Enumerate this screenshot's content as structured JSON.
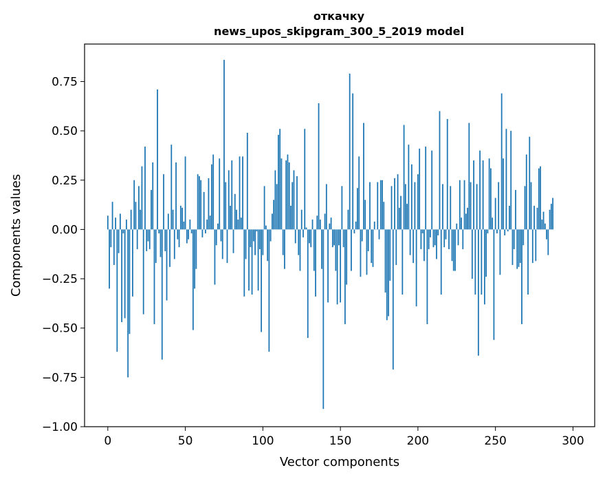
{
  "chart_data": {
    "type": "bar",
    "title": "откачку",
    "subtitle": "news_upos_skipgram_300_5_2019 model",
    "xlabel": "Vector components",
    "ylabel": "Components values",
    "xlim": [
      -15,
      314
    ],
    "ylim": [
      -1.0,
      0.94
    ],
    "xticks": [
      0,
      50,
      100,
      150,
      200,
      250,
      300
    ],
    "xtick_labels": [
      "0",
      "50",
      "100",
      "150",
      "200",
      "250",
      "300"
    ],
    "yticks": [
      -1.0,
      -0.75,
      -0.5,
      -0.25,
      0.0,
      0.25,
      0.5,
      0.75
    ],
    "ytick_labels": [
      "−1.00",
      "−0.75",
      "−0.50",
      "−0.25",
      "0.00",
      "0.25",
      "0.50",
      "0.75"
    ],
    "grid": false,
    "bar_color": "#1f77b4",
    "bar_width": 0.8,
    "values": [
      0.07,
      -0.3,
      -0.09,
      0.14,
      -0.18,
      0.06,
      -0.62,
      -0.12,
      0.08,
      -0.47,
      -0.02,
      -0.45,
      0.05,
      -0.75,
      -0.53,
      0.1,
      -0.34,
      0.25,
      0.14,
      -0.1,
      0.22,
      0.1,
      0.32,
      -0.43,
      0.42,
      -0.11,
      -0.06,
      -0.1,
      0.2,
      0.34,
      -0.48,
      -0.17,
      0.71,
      -0.02,
      -0.14,
      -0.66,
      0.28,
      -0.11,
      -0.36,
      0.08,
      -0.19,
      0.43,
      0.1,
      -0.15,
      0.34,
      -0.05,
      -0.09,
      0.12,
      0.11,
      0.04,
      0.37,
      -0.07,
      -0.05,
      0.05,
      -0.02,
      -0.51,
      -0.3,
      -0.2,
      0.28,
      0.27,
      0.25,
      -0.04,
      0.19,
      -0.02,
      0.05,
      0.26,
      0.07,
      0.33,
      0.38,
      -0.28,
      -0.08,
      0.03,
      0.36,
      -0.06,
      -0.15,
      0.86,
      0.24,
      -0.17,
      0.3,
      0.12,
      0.35,
      -0.12,
      0.18,
      0.1,
      0.05,
      0.37,
      0.06,
      0.37,
      -0.34,
      -0.15,
      0.49,
      -0.31,
      -0.09,
      -0.33,
      -0.06,
      -0.13,
      -0.01,
      -0.31,
      -0.1,
      -0.52,
      -0.13,
      0.22,
      0.02,
      -0.16,
      -0.62,
      -0.06,
      0.08,
      0.15,
      0.3,
      0.23,
      0.48,
      0.51,
      0.36,
      -0.13,
      -0.2,
      0.35,
      0.38,
      0.34,
      0.12,
      0.24,
      0.3,
      -0.07,
      0.27,
      -0.13,
      -0.21,
      0.1,
      -0.04,
      0.51,
      0.01,
      -0.55,
      -0.07,
      -0.09,
      0.05,
      -0.21,
      -0.34,
      0.07,
      0.64,
      0.05,
      -0.2,
      -0.91,
      0.08,
      0.23,
      -0.37,
      0.03,
      0.06,
      -0.09,
      -0.08,
      -0.21,
      -0.38,
      -0.08,
      -0.37,
      0.22,
      -0.09,
      -0.48,
      -0.28,
      0.1,
      0.79,
      -0.21,
      0.69,
      -0.02,
      0.04,
      0.21,
      0.37,
      -0.24,
      -0.06,
      0.54,
      0.15,
      -0.23,
      -0.11,
      0.24,
      -0.17,
      -0.19,
      0.04,
      0.0,
      0.24,
      -0.05,
      0.25,
      0.25,
      0.14,
      -0.32,
      -0.46,
      -0.44,
      -0.26,
      0.22,
      -0.71,
      0.26,
      -0.18,
      0.28,
      0.11,
      0.17,
      -0.33,
      0.53,
      0.23,
      0.13,
      0.43,
      -0.13,
      0.33,
      -0.17,
      0.24,
      -0.39,
      0.28,
      0.41,
      -0.1,
      -0.02,
      -0.16,
      0.42,
      -0.48,
      -0.1,
      -0.04,
      0.4,
      -0.09,
      -0.08,
      -0.15,
      -0.03,
      0.6,
      -0.33,
      0.23,
      -0.09,
      -0.05,
      0.56,
      -0.1,
      0.22,
      -0.16,
      -0.21,
      -0.21,
      0.03,
      -0.08,
      0.25,
      0.06,
      -0.1,
      0.25,
      0.08,
      0.11,
      0.54,
      0.24,
      -0.25,
      0.35,
      -0.33,
      0.23,
      -0.64,
      0.4,
      -0.33,
      0.35,
      -0.38,
      -0.24,
      -0.02,
      0.36,
      0.31,
      0.06,
      -0.56,
      0.16,
      -0.02,
      0.24,
      -0.23,
      0.69,
      0.36,
      -0.03,
      0.51,
      -0.01,
      0.12,
      0.5,
      -0.18,
      -0.1,
      0.2,
      -0.2,
      -0.19,
      -0.17,
      -0.48,
      -0.08,
      0.22,
      0.38,
      -0.33,
      0.47,
      0.24,
      -0.17,
      0.12,
      -0.16,
      0.11,
      0.31,
      0.32,
      0.05,
      0.09,
      0.03,
      -0.05,
      -0.13,
      0.1,
      0.13,
      0.16
    ]
  }
}
